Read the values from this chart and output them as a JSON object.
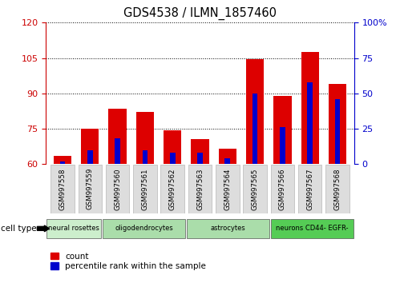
{
  "title": "GDS4538 / ILMN_1857460",
  "samples": [
    "GSM997558",
    "GSM997559",
    "GSM997560",
    "GSM997561",
    "GSM997562",
    "GSM997563",
    "GSM997564",
    "GSM997565",
    "GSM997566",
    "GSM997567",
    "GSM997568"
  ],
  "count_values": [
    63.5,
    75.0,
    83.5,
    82.0,
    74.5,
    70.5,
    66.5,
    104.5,
    89.0,
    107.5,
    94.0
  ],
  "percentile_values": [
    2.0,
    10.0,
    18.0,
    10.0,
    8.0,
    8.0,
    4.0,
    50.0,
    26.0,
    58.0,
    46.0
  ],
  "ymin": 60,
  "ymax": 120,
  "y2min": 0,
  "y2max": 100,
  "yticks": [
    60,
    75,
    90,
    105,
    120
  ],
  "y2ticks": [
    0,
    25,
    50,
    75,
    100
  ],
  "bar_color": "#dd0000",
  "percentile_color": "#0000cc",
  "bar_width": 0.65,
  "red_axis_color": "#cc0000",
  "blue_axis_color": "#0000cc",
  "legend_count_label": "count",
  "legend_percentile_label": "percentile rank within the sample",
  "cell_type_label": "cell type",
  "bg_color": "#ffffff",
  "groups": [
    {
      "label": "neural rosettes",
      "start": 0,
      "end": 2,
      "color": "#cceecc"
    },
    {
      "label": "oligodendrocytes",
      "start": 2,
      "end": 5,
      "color": "#aaddaa"
    },
    {
      "label": "astrocytes",
      "start": 5,
      "end": 8,
      "color": "#aaddaa"
    },
    {
      "label": "neurons CD44- EGFR-",
      "start": 8,
      "end": 11,
      "color": "#55cc55"
    }
  ]
}
